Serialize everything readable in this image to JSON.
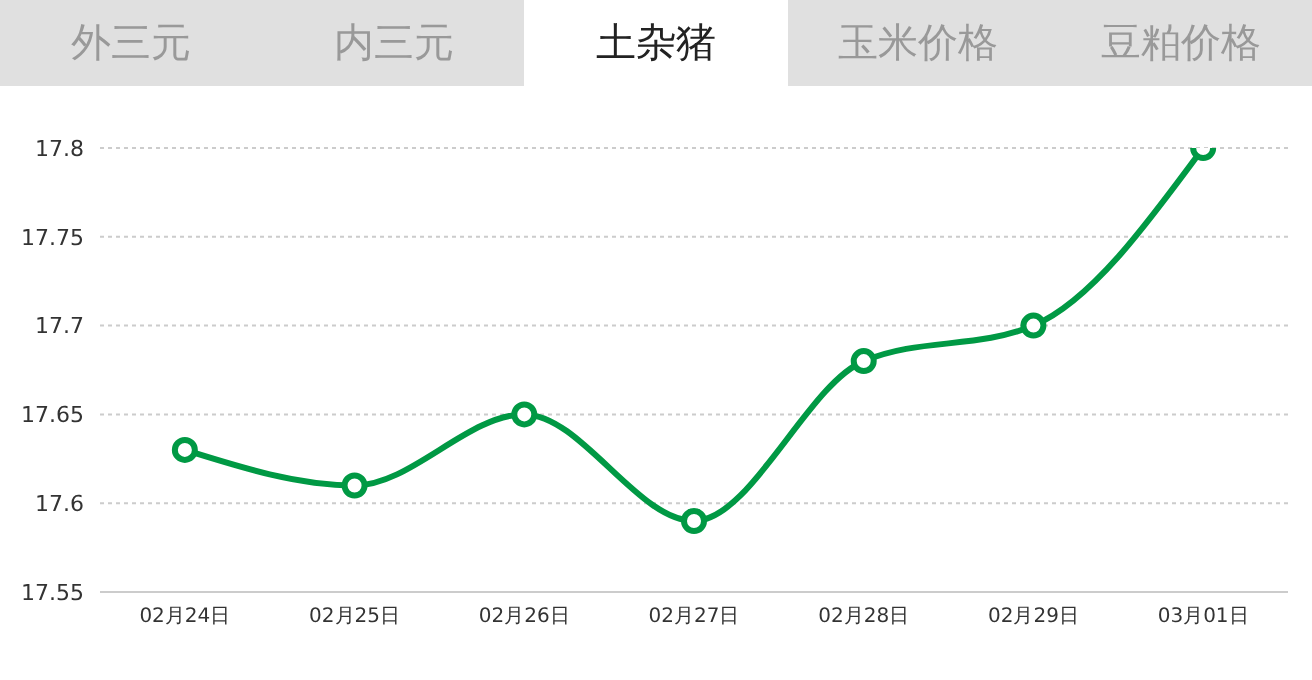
{
  "chart_data": {
    "type": "line",
    "title": "土杂猪",
    "annotations": [
      "外三元",
      "内三元",
      "玉米价格",
      "豆粕价格"
    ],
    "categories": [
      "02月24日",
      "02月25日",
      "02月26日",
      "02月27日",
      "02月28日",
      "02月29日",
      "03月01日"
    ],
    "series": [
      {
        "color": "#009944",
        "values": [
          17.63,
          17.61,
          17.65,
          17.59,
          17.68,
          17.7,
          17.8
        ]
      }
    ],
    "ylim": [
      17.55,
      17.8
    ],
    "yticks": [
      17.55,
      17.6,
      17.65,
      17.7,
      17.75,
      17.8
    ],
    "grid": "y",
    "marker": "circle",
    "line_style": "solid"
  }
}
